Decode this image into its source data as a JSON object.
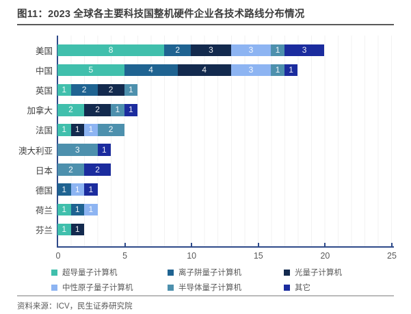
{
  "figure": {
    "title": "图11：2023 全球各主要科技国整机硬件企业各技术路线分布情况",
    "source": "资料来源：ICV，民生证券研究院"
  },
  "chart_data": {
    "type": "bar",
    "orientation": "horizontal",
    "stacked": true,
    "title": "2023 全球各主要科技国整机硬件企业各技术路线分布情况",
    "categories": [
      "美国",
      "中国",
      "英国",
      "加拿大",
      "法国",
      "澳大利亚",
      "日本",
      "德国",
      "荷兰",
      "芬兰"
    ],
    "series": [
      {
        "name": "超导量子计算机",
        "color": "#40bfac",
        "values": [
          8,
          5,
          1,
          2,
          1,
          0,
          0,
          0,
          1,
          1
        ]
      },
      {
        "name": "离子阱量子计算机",
        "color": "#1f6391",
        "values": [
          2,
          4,
          2,
          0,
          0,
          0,
          0,
          1,
          1,
          0
        ]
      },
      {
        "name": "光量子计算机",
        "color": "#132a4e",
        "values": [
          3,
          4,
          2,
          2,
          1,
          0,
          0,
          0,
          0,
          1
        ]
      },
      {
        "name": "中性原子量子计算机",
        "color": "#8db4f2",
        "values": [
          3,
          3,
          0,
          0,
          1,
          0,
          0,
          1,
          1,
          0
        ]
      },
      {
        "name": "半导体量子计算机",
        "color": "#4d90ad",
        "values": [
          1,
          1,
          1,
          1,
          2,
          3,
          2,
          0,
          0,
          0
        ]
      },
      {
        "name": "其它",
        "color": "#1b2c9e",
        "values": [
          3,
          1,
          0,
          1,
          0,
          1,
          2,
          1,
          0,
          0
        ]
      }
    ],
    "totals": [
      20,
      18,
      6,
      6,
      5,
      4,
      4,
      3,
      3,
      2
    ],
    "xlim": [
      0,
      25
    ],
    "xticks": [
      0,
      5,
      10,
      15,
      20,
      25
    ],
    "grid": "faint vertical gridlines every 1 unit",
    "legend_position": "bottom",
    "value_labels": "white numerals centered inside each segment",
    "axis_color": "#2e4a89",
    "tick_label_color": "#595959"
  }
}
